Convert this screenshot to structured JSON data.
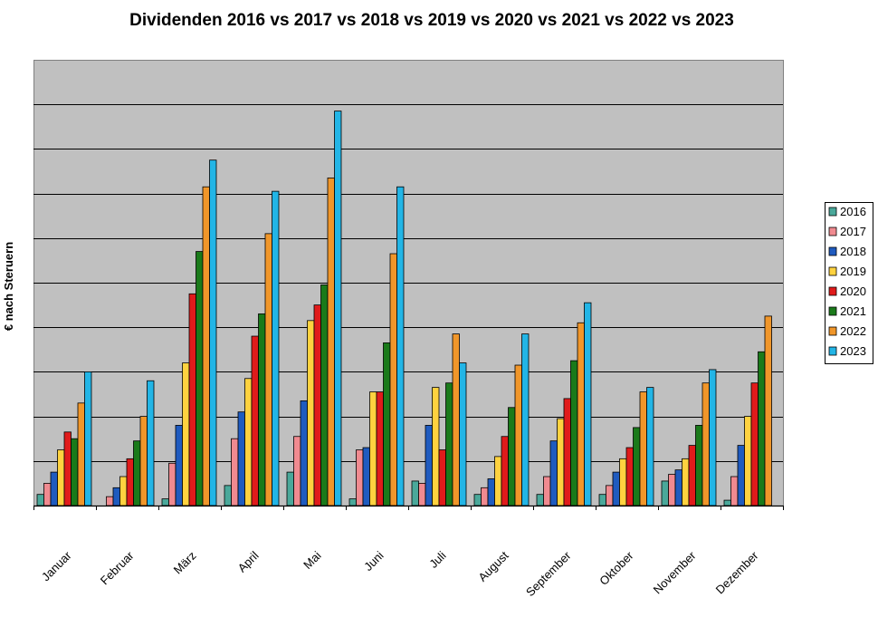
{
  "chart_data": {
    "type": "bar",
    "title": "Dividenden 2016 vs 2017 vs 2018 vs 2019 vs 2020 vs 2021 vs 2022 vs 2023",
    "xlabel": "",
    "ylabel": "€ nach Steruern",
    "ylim": [
      0,
      10
    ],
    "grid": true,
    "legend": "right",
    "categories": [
      "Januar",
      "Februar",
      "März",
      "April",
      "Mai",
      "Juni",
      "Juli",
      "August",
      "September",
      "Oktober",
      "November",
      "Dezember"
    ],
    "series": [
      {
        "name": "2016",
        "color": "#4aa89a",
        "values": [
          0.25,
          0.0,
          0.15,
          0.45,
          0.75,
          0.15,
          0.55,
          0.25,
          0.25,
          0.25,
          0.55,
          0.12
        ]
      },
      {
        "name": "2017",
        "color": "#f08a90",
        "values": [
          0.5,
          0.2,
          0.95,
          1.5,
          1.55,
          1.25,
          0.5,
          0.4,
          0.65,
          0.45,
          0.7,
          0.65
        ]
      },
      {
        "name": "2018",
        "color": "#1f5bbf",
        "values": [
          0.75,
          0.4,
          1.8,
          2.1,
          2.35,
          1.3,
          1.8,
          0.6,
          1.45,
          0.75,
          0.8,
          1.35
        ]
      },
      {
        "name": "2019",
        "color": "#ffd23f",
        "values": [
          1.25,
          0.65,
          3.2,
          2.85,
          4.15,
          2.55,
          2.65,
          1.1,
          1.95,
          1.05,
          1.05,
          2.0
        ]
      },
      {
        "name": "2020",
        "color": "#e01b1b",
        "values": [
          1.65,
          1.05,
          4.75,
          3.8,
          4.5,
          2.55,
          1.25,
          1.55,
          2.4,
          1.3,
          1.35,
          2.75
        ]
      },
      {
        "name": "2021",
        "color": "#1a7a1a",
        "values": [
          1.5,
          1.45,
          5.7,
          4.3,
          4.95,
          3.65,
          2.75,
          2.2,
          3.25,
          1.75,
          1.8,
          3.45
        ]
      },
      {
        "name": "2022",
        "color": "#f0962a",
        "values": [
          2.3,
          2.0,
          7.15,
          6.1,
          7.35,
          5.65,
          3.85,
          3.15,
          4.1,
          2.55,
          2.75,
          4.25
        ]
      },
      {
        "name": "2023",
        "color": "#22b5e6",
        "values": [
          3.0,
          2.8,
          7.75,
          7.05,
          8.85,
          7.15,
          3.2,
          3.85,
          4.55,
          2.65,
          3.05,
          0
        ]
      }
    ]
  }
}
